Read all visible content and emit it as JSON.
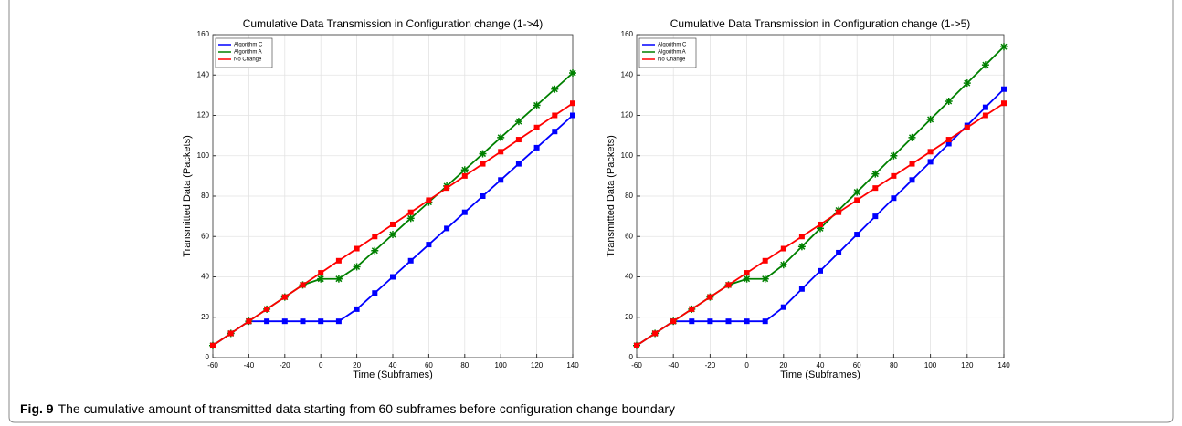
{
  "chart_data": [
    {
      "type": "line",
      "title": "Cumulative Data Transmission in Configuration change (1->4)",
      "xlabel": "Time (Subframes)",
      "ylabel": "Transmitted Data (Packets)",
      "x": [
        -60,
        -50,
        -40,
        -30,
        -20,
        -10,
        0,
        10,
        20,
        30,
        40,
        50,
        60,
        70,
        80,
        90,
        100,
        110,
        120,
        130,
        140
      ],
      "series": [
        {
          "name": "Algorithm C",
          "color": "#0000ff",
          "marker": "square",
          "values": [
            6,
            12,
            18,
            18,
            18,
            18,
            18,
            18,
            24,
            32,
            40,
            48,
            56,
            64,
            72,
            80,
            88,
            96,
            104,
            112,
            120
          ]
        },
        {
          "name": "Algorithm A",
          "color": "#008000",
          "marker": "asterisk",
          "values": [
            6,
            12,
            18,
            24,
            30,
            36,
            39,
            39,
            45,
            53,
            61,
            69,
            77,
            85,
            93,
            101,
            109,
            117,
            125,
            133,
            141
          ]
        },
        {
          "name": "No Change",
          "color": "#ff0000",
          "marker": "square",
          "values": [
            6,
            12,
            18,
            24,
            30,
            36,
            42,
            48,
            54,
            60,
            66,
            72,
            78,
            84,
            90,
            96,
            102,
            108,
            114,
            120,
            126
          ]
        }
      ],
      "xlim": [
        -60,
        140
      ],
      "xticks": [
        -60,
        -40,
        -20,
        0,
        20,
        40,
        60,
        80,
        100,
        120,
        140
      ],
      "ylim": [
        0,
        160
      ],
      "yticks": [
        0,
        20,
        40,
        60,
        80,
        100,
        120,
        140,
        160
      ],
      "grid": true,
      "legend": "upper-left"
    },
    {
      "type": "line",
      "title": "Cumulative Data Transmission in Configuration change (1->5)",
      "xlabel": "Time (Subframes)",
      "ylabel": "Transmitted Data (Packets)",
      "x": [
        -60,
        -50,
        -40,
        -30,
        -20,
        -10,
        0,
        10,
        20,
        30,
        40,
        50,
        60,
        70,
        80,
        90,
        100,
        110,
        120,
        130,
        140
      ],
      "series": [
        {
          "name": "Algorithm C",
          "color": "#0000ff",
          "marker": "square",
          "values": [
            6,
            12,
            18,
            18,
            18,
            18,
            18,
            18,
            25,
            34,
            43,
            52,
            61,
            70,
            79,
            88,
            97,
            106,
            115,
            124,
            133
          ]
        },
        {
          "name": "Algorithm A",
          "color": "#008000",
          "marker": "asterisk",
          "values": [
            6,
            12,
            18,
            24,
            30,
            36,
            39,
            39,
            46,
            55,
            64,
            73,
            82,
            91,
            100,
            109,
            118,
            127,
            136,
            145,
            154
          ]
        },
        {
          "name": "No Change",
          "color": "#ff0000",
          "marker": "square",
          "values": [
            6,
            12,
            18,
            24,
            30,
            36,
            42,
            48,
            54,
            60,
            66,
            72,
            78,
            84,
            90,
            96,
            102,
            108,
            114,
            120,
            126
          ]
        }
      ],
      "xlim": [
        -60,
        140
      ],
      "xticks": [
        -60,
        -40,
        -20,
        0,
        20,
        40,
        60,
        80,
        100,
        120,
        140
      ],
      "ylim": [
        0,
        160
      ],
      "yticks": [
        0,
        20,
        40,
        60,
        80,
        100,
        120,
        140,
        160
      ],
      "grid": true,
      "legend": "upper-left"
    }
  ],
  "caption": {
    "label": "Fig. 9",
    "text": "The cumulative amount of transmitted data starting from 60 subframes before configuration change boundary"
  }
}
